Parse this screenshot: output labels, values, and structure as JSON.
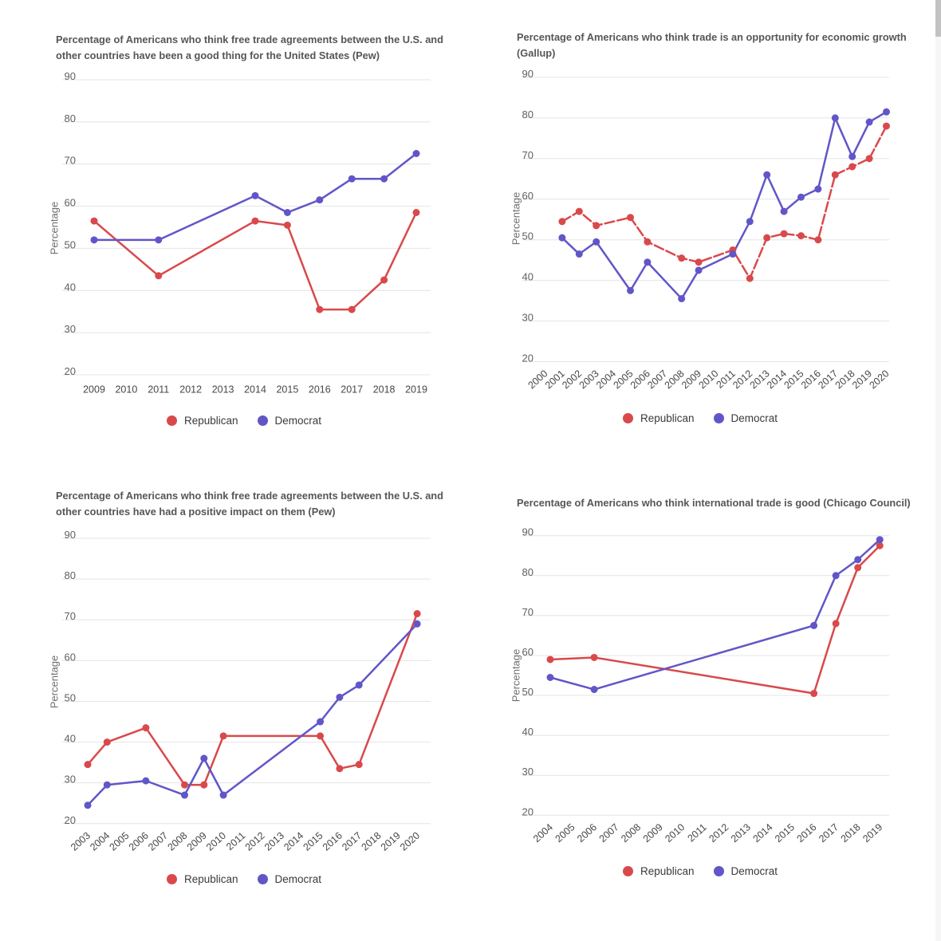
{
  "page": {
    "background": "#ffffff"
  },
  "colors": {
    "republican": "#d9494b",
    "democrat": "#6156c8",
    "grid": "#e4e4e4",
    "y_tick_text": "#5f5f5f",
    "x_tick_text": "#474747",
    "axis_title_text": "#6e6e6e",
    "chart_title_text": "#565656",
    "legend_text": "#3a3a3a"
  },
  "chart_data": [
    {
      "type": "line",
      "title": "Percentage of Americans who think free trade agreements between the U.S. and other countries have been a good thing for the United States  (Pew)",
      "title_lines": [
        "Percentage of Americans who think free trade agreements between the U.S. and",
        "other countries have been a good thing for the United States  (Pew)"
      ],
      "ylabel": "Percentage",
      "ylim": [
        20,
        90
      ],
      "yticks": [
        90,
        80,
        70,
        60,
        50,
        40,
        30,
        20
      ],
      "xticks": [
        2009,
        2010,
        2011,
        2012,
        2013,
        2014,
        2015,
        2016,
        2017,
        2018,
        2019
      ],
      "xtick_rotation": 0,
      "grid": true,
      "legend_position": "bottom",
      "series": [
        {
          "name": "Republican",
          "color": "#d9494b",
          "dashed": false,
          "points": [
            [
              2009,
              56.5
            ],
            [
              2011,
              43.5
            ],
            [
              2014,
              56.5
            ],
            [
              2015,
              55.5
            ],
            [
              2016,
              35.5
            ],
            [
              2017,
              35.5
            ],
            [
              2018,
              42.5
            ],
            [
              2019,
              58.5
            ]
          ]
        },
        {
          "name": "Democrat",
          "color": "#6156c8",
          "dashed": false,
          "points": [
            [
              2009,
              52
            ],
            [
              2011,
              52
            ],
            [
              2014,
              62.5
            ],
            [
              2015,
              58.5
            ],
            [
              2016,
              61.5
            ],
            [
              2017,
              66.5
            ],
            [
              2018,
              66.5
            ],
            [
              2019,
              72.5
            ]
          ]
        }
      ]
    },
    {
      "type": "line",
      "title": "Percentage of Americans who think trade is an opportunity for economic growth (Gallup)",
      "title_lines": [
        "Percentage of Americans who think trade is an opportunity for economic growth",
        "(Gallup)"
      ],
      "ylabel": "Percentage",
      "ylim": [
        20,
        90
      ],
      "yticks": [
        90,
        80,
        70,
        60,
        50,
        40,
        30,
        20
      ],
      "xticks": [
        2000,
        2001,
        2002,
        2003,
        2004,
        2005,
        2006,
        2007,
        2008,
        2009,
        2010,
        2011,
        2012,
        2013,
        2014,
        2015,
        2016,
        2017,
        2018,
        2019,
        2020
      ],
      "xtick_rotation": -42,
      "grid": true,
      "legend_position": "bottom",
      "series": [
        {
          "name": "Republican",
          "color": "#d9494b",
          "dashed": true,
          "points": [
            [
              2001,
              54.5
            ],
            [
              2002,
              57
            ],
            [
              2003,
              53.5
            ],
            [
              2005,
              55.5
            ],
            [
              2006,
              49.5
            ],
            [
              2008,
              45.5
            ],
            [
              2009,
              44.5
            ],
            [
              2011,
              47.5
            ],
            [
              2012,
              40.5
            ],
            [
              2013,
              50.5
            ],
            [
              2014,
              51.5
            ],
            [
              2015,
              51
            ],
            [
              2016,
              50
            ],
            [
              2017,
              66
            ],
            [
              2018,
              68
            ],
            [
              2019,
              70
            ],
            [
              2020,
              78
            ]
          ]
        },
        {
          "name": "Democrat",
          "color": "#6156c8",
          "dashed": false,
          "points": [
            [
              2001,
              50.5
            ],
            [
              2002,
              46.5
            ],
            [
              2003,
              49.5
            ],
            [
              2005,
              37.5
            ],
            [
              2006,
              44.5
            ],
            [
              2008,
              35.5
            ],
            [
              2009,
              42.5
            ],
            [
              2011,
              46.5
            ],
            [
              2012,
              54.5
            ],
            [
              2013,
              66
            ],
            [
              2014,
              57
            ],
            [
              2015,
              60.5
            ],
            [
              2016,
              62.5
            ],
            [
              2017,
              80
            ],
            [
              2018,
              70.5
            ],
            [
              2019,
              79
            ],
            [
              2020,
              81.5
            ]
          ]
        }
      ]
    },
    {
      "type": "line",
      "title": "Percentage of Americans who think free trade agreements between the U.S. and other countries have had a positive impact on them (Pew)",
      "title_lines": [
        "Percentage of Americans who think free trade agreements between the U.S. and",
        "other countries have had a positive impact on them (Pew)"
      ],
      "ylabel": "Percentage",
      "ylim": [
        20,
        90
      ],
      "yticks": [
        90,
        80,
        70,
        60,
        50,
        40,
        30,
        20
      ],
      "xticks": [
        2003,
        2004,
        2005,
        2006,
        2007,
        2008,
        2009,
        2010,
        2011,
        2012,
        2013,
        2014,
        2015,
        2016,
        2017,
        2018,
        2019,
        2020
      ],
      "xtick_rotation": -42,
      "grid": true,
      "legend_position": "bottom",
      "series": [
        {
          "name": "Republican",
          "color": "#d9494b",
          "dashed": false,
          "points": [
            [
              2003,
              34.5
            ],
            [
              2004,
              40
            ],
            [
              2006,
              43.5
            ],
            [
              2008,
              29.5
            ],
            [
              2009,
              29.5
            ],
            [
              2010,
              41.5
            ],
            [
              2015,
              41.5
            ],
            [
              2016,
              33.5
            ],
            [
              2017,
              34.5
            ],
            [
              2020,
              71.5
            ]
          ]
        },
        {
          "name": "Democrat",
          "color": "#6156c8",
          "dashed": false,
          "points": [
            [
              2003,
              24.5
            ],
            [
              2004,
              29.5
            ],
            [
              2006,
              30.5
            ],
            [
              2008,
              27
            ],
            [
              2009,
              36
            ],
            [
              2010,
              27
            ],
            [
              2015,
              45
            ],
            [
              2016,
              51
            ],
            [
              2017,
              54
            ],
            [
              2020,
              69
            ]
          ]
        }
      ]
    },
    {
      "type": "line",
      "title": "Percentage of Americans who think international trade is good (Chicago Council)",
      "title_lines": [
        "Percentage of Americans who think international trade is good (Chicago Council)"
      ],
      "ylabel": "Percentage",
      "ylim": [
        20,
        90
      ],
      "yticks": [
        90,
        80,
        70,
        60,
        50,
        40,
        30,
        20
      ],
      "xticks": [
        2004,
        2005,
        2006,
        2007,
        2008,
        2009,
        2010,
        2011,
        2012,
        2013,
        2014,
        2015,
        2016,
        2017,
        2018,
        2019
      ],
      "xtick_rotation": -42,
      "grid": true,
      "legend_position": "bottom",
      "series": [
        {
          "name": "Republican",
          "color": "#d9494b",
          "dashed": false,
          "points": [
            [
              2004,
              59
            ],
            [
              2006,
              59.5
            ],
            [
              2016,
              50.5
            ],
            [
              2017,
              68
            ],
            [
              2018,
              82
            ],
            [
              2019,
              87.5
            ]
          ]
        },
        {
          "name": "Democrat",
          "color": "#6156c8",
          "dashed": false,
          "points": [
            [
              2004,
              54.5
            ],
            [
              2006,
              51.5
            ],
            [
              2016,
              67.5
            ],
            [
              2017,
              80
            ],
            [
              2018,
              84
            ],
            [
              2019,
              89
            ]
          ]
        }
      ]
    }
  ]
}
